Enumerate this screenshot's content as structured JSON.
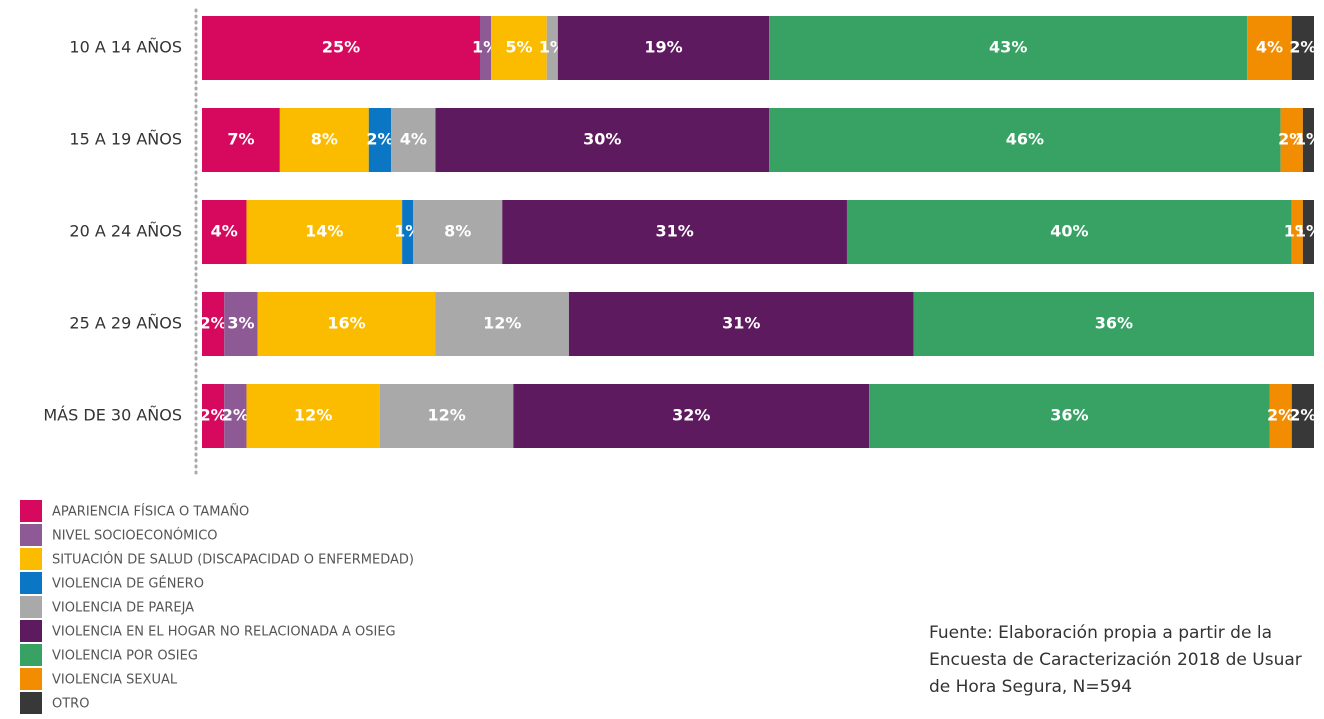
{
  "chart_data": {
    "type": "stacked_bar_horizontal",
    "categories": [
      "10 A 14 AÑOS",
      "15 A 19 AÑOS",
      "20 A 24 AÑOS",
      "25 A 29 AÑOS",
      "MÁS DE 30 AÑOS"
    ],
    "xlim": [
      0,
      100
    ],
    "series": [
      {
        "name": "APARIENCIA FÍSICA O TAMAÑO",
        "color": "#d6095e",
        "values": [
          25,
          7,
          4,
          2,
          2
        ],
        "value_labels": [
          "25%",
          "7%",
          "4%",
          "2%",
          "2%"
        ]
      },
      {
        "name": "NIVEL SOCIOECONÓMICO",
        "color": "#8e5a96",
        "values": [
          1,
          0,
          0,
          3,
          2
        ],
        "value_labels": [
          "1%",
          null,
          null,
          "3%",
          "2%"
        ]
      },
      {
        "name": "SITUACIÓN DE SALUD (DISCAPACIDAD O ENFERMEDAD)",
        "color": "#fbbc00",
        "values": [
          5,
          8,
          14,
          16,
          12
        ],
        "value_labels": [
          "5%",
          "8%",
          "14%",
          "16%",
          "12%"
        ]
      },
      {
        "name": "VIOLENCIA DE GÉNERO",
        "color": "#0a76c4",
        "values": [
          0,
          2,
          1,
          0,
          0
        ],
        "value_labels": [
          null,
          "2%",
          "1%",
          null,
          null
        ]
      },
      {
        "name": "VIOLENCIA DE PAREJA",
        "color": "#a9a9a9",
        "values": [
          1,
          4,
          8,
          12,
          12
        ],
        "value_labels": [
          "1%",
          "4%",
          "8%",
          "12%",
          "12%"
        ]
      },
      {
        "name": "VIOLENCIA EN EL HOGAR NO RELACIONADA A OSIEG",
        "color": "#5e1a5e",
        "values": [
          19,
          30,
          31,
          31,
          32
        ],
        "value_labels": [
          "19%",
          "30%",
          "31%",
          "31%",
          "32%"
        ]
      },
      {
        "name": "VIOLENCIA POR OSIEG",
        "color": "#38a265",
        "values": [
          43,
          46,
          40,
          36,
          36
        ],
        "value_labels": [
          "43%",
          "46%",
          "40%",
          "36%",
          "36%"
        ]
      },
      {
        "name": "VIOLENCIA SEXUAL",
        "color": "#f28c00",
        "values": [
          4,
          2,
          1,
          0,
          2
        ],
        "value_labels": [
          "4%",
          "2%",
          "1%",
          null,
          "2%"
        ]
      },
      {
        "name": "OTRO",
        "color": "#383838",
        "values": [
          2,
          1,
          1,
          0,
          2
        ],
        "value_labels": [
          "2%",
          "1%",
          "1%",
          null,
          "2%"
        ]
      }
    ],
    "annotations": [
      "Fuente: Elaboración propia a partir de la",
      "Encuesta de Caracterización 2018 de Usuar",
      "de Hora Segura, N=594"
    ]
  }
}
